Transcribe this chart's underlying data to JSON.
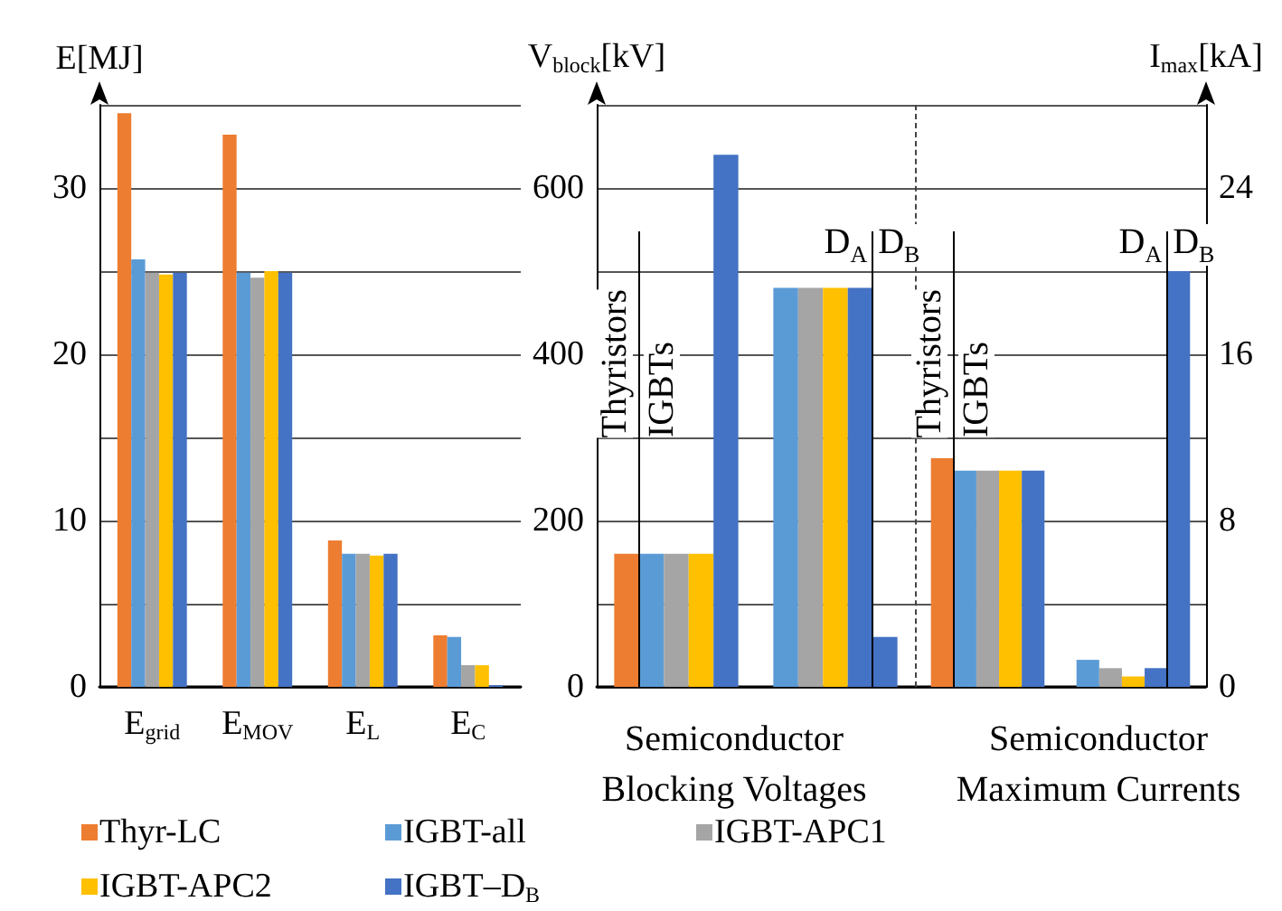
{
  "chart_data": [
    {
      "type": "bar",
      "ylabel": "E[MJ]",
      "categories": [
        "E$_{grid}$",
        "E$_{MOV}$",
        "E$_{L}$",
        "E$_{C}$"
      ],
      "series": [
        {
          "name": "Thyr-LC",
          "color": "#ed7d31",
          "values": [
            34.5,
            33.2,
            8.8,
            3.1
          ]
        },
        {
          "name": "IGBT-all",
          "color": "#5b9bd5",
          "values": [
            25.7,
            24.9,
            8.0,
            3.0
          ]
        },
        {
          "name": "IGBT-APC1",
          "color": "#a5a5a5",
          "values": [
            24.9,
            24.6,
            8.0,
            1.3
          ]
        },
        {
          "name": "IGBT-APC2",
          "color": "#ffc000",
          "values": [
            24.8,
            25.0,
            7.9,
            1.3
          ]
        },
        {
          "name": "IGBT–D$_{B}$",
          "color": "#4472c4",
          "values": [
            24.9,
            24.9,
            8.0,
            0.1
          ]
        }
      ],
      "ylim": [
        0,
        35
      ],
      "yticks": [
        0,
        {
          "value": 5,
          "label": null
        },
        10,
        {
          "value": 15,
          "label": null
        },
        20,
        {
          "value": 25,
          "label": null
        },
        30,
        {
          "value": 35,
          "label": null
        }
      ],
      "grid": "y",
      "legend": "bottom"
    },
    {
      "type": "bar",
      "ylabel": "V$_{block}$[kV]",
      "xlabel": "Semiconductor Blocking Voltages",
      "categories": [
        null,
        null
      ],
      "series": [
        {
          "colors": [
            "#ed7d31",
            "#5b9bd5"
          ],
          "values": [
            160,
            480
          ]
        },
        {
          "colors": [
            "#5b9bd5",
            "#a5a5a5"
          ],
          "values": [
            160,
            480
          ]
        },
        {
          "colors": [
            "#a5a5a5",
            "#ffc000"
          ],
          "values": [
            160,
            480
          ]
        },
        {
          "colors": [
            "#ffc000",
            "#4472c4"
          ],
          "values": [
            160,
            480
          ]
        },
        {
          "colors": [
            "#4472c4",
            "#4472c4"
          ],
          "values": [
            640,
            60
          ]
        }
      ],
      "ylim": [
        0,
        700
      ],
      "yticks": [
        0,
        {
          "value": 100,
          "label": null
        },
        200,
        {
          "value": 300,
          "label": null
        },
        400,
        {
          "value": 500,
          "label": null
        },
        600,
        {
          "value": 700,
          "label": null
        }
      ],
      "grid": "y",
      "annotations": [
        "Thyristors",
        "IGBTs",
        "D$_{A}$",
        "D$_{B}$"
      ]
    },
    {
      "type": "bar",
      "ylabel": "I$_{max}$[kA]",
      "xlabel": "Semiconductor Maximum Currents",
      "categories": [
        null,
        null
      ],
      "series": [
        {
          "colors": [
            "#ed7d31",
            "#5b9bd5"
          ],
          "values": [
            11,
            1.3
          ]
        },
        {
          "colors": [
            "#5b9bd5",
            "#a5a5a5"
          ],
          "values": [
            10.4,
            0.9
          ]
        },
        {
          "colors": [
            "#a5a5a5",
            "#ffc000"
          ],
          "values": [
            10.4,
            0.5
          ]
        },
        {
          "colors": [
            "#ffc000",
            "#4472c4"
          ],
          "values": [
            10.4,
            0.9
          ]
        },
        {
          "colors": [
            "#4472c4",
            "#4472c4"
          ],
          "values": [
            10.4,
            20
          ]
        }
      ],
      "ylim": [
        0,
        28
      ],
      "yticks": [
        0,
        {
          "value": 4,
          "label": null
        },
        8,
        {
          "value": 12,
          "label": null
        },
        16,
        {
          "value": 20,
          "label": null
        },
        24,
        {
          "value": 28,
          "label": null
        }
      ],
      "grid": "y",
      "annotations": [
        "Thyristors",
        "IGBTs",
        "D$_{A}$",
        "D$_{B}$"
      ]
    }
  ]
}
